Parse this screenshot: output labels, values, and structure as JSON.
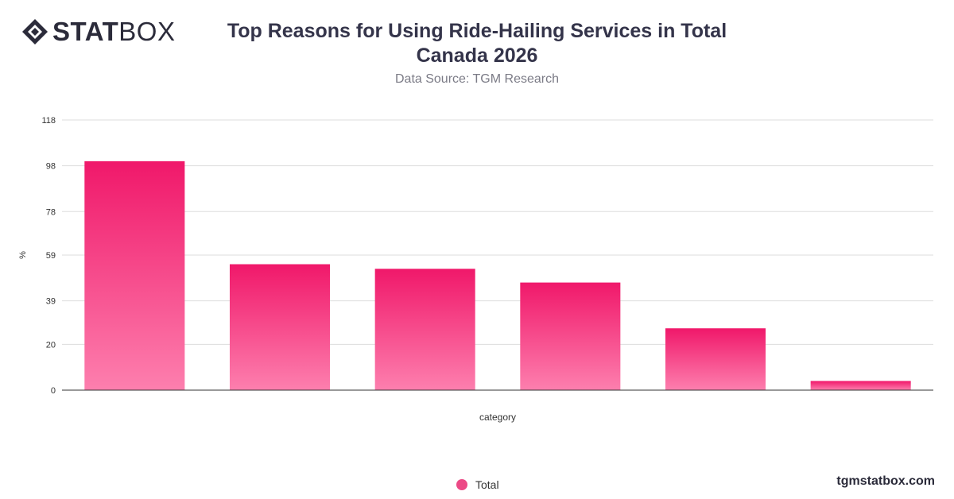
{
  "brand": {
    "logo_bold": "STAT",
    "logo_light": "BOX",
    "website": "tgmstatbox.com"
  },
  "colors": {
    "bar_top": "#f0186a",
    "bar_bottom": "#fd7fae",
    "grid": "#dddddd",
    "text": "#34344a"
  },
  "chart_data": {
    "type": "bar",
    "title": "Top Reasons for Using Ride-Hailing Services in Total Canada 2026",
    "subtitle": "Data Source: TGM Research",
    "xlabel": "category",
    "ylabel": "%",
    "ylim": [
      0,
      118
    ],
    "yticks": [
      "0",
      "20",
      "39",
      "59",
      "78",
      "98",
      "118"
    ],
    "grid": true,
    "legend_position": "bottom-center",
    "categories": [
      "",
      "",
      "",
      "",
      "",
      ""
    ],
    "series": [
      {
        "name": "Total",
        "values": [
          100,
          55,
          53,
          47,
          27,
          4
        ]
      }
    ]
  }
}
